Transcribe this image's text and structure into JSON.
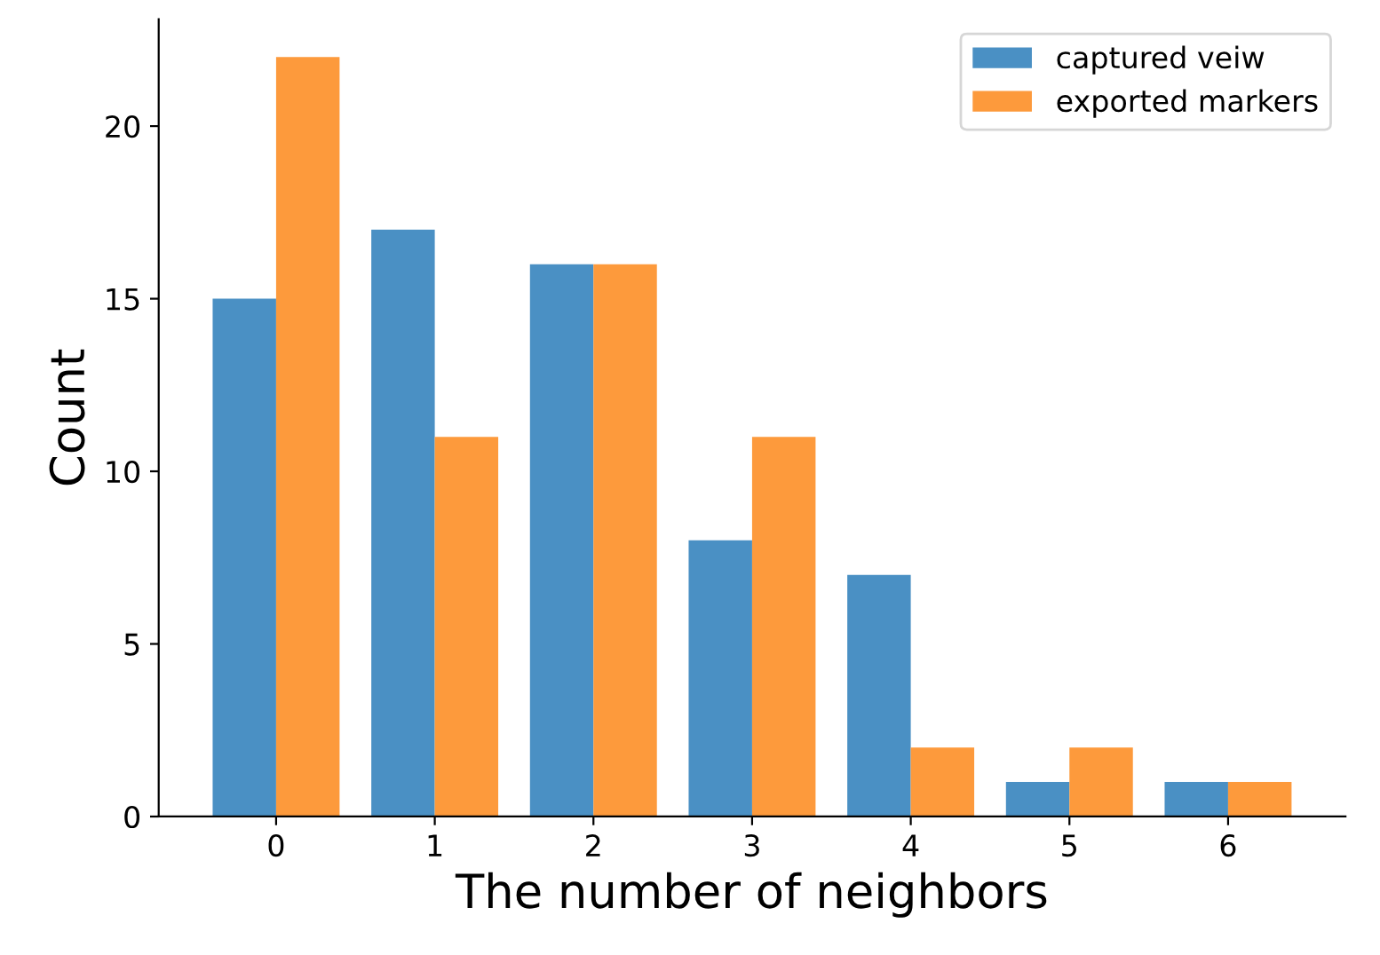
{
  "chart_data": {
    "type": "bar",
    "xlabel": "The number of neighbors",
    "ylabel": "Count",
    "categories": [
      "0",
      "1",
      "2",
      "3",
      "4",
      "5",
      "6"
    ],
    "series": [
      {
        "name": "captured veiw",
        "color": "#4a90c4",
        "values": [
          15,
          17,
          16,
          8,
          7,
          1,
          1
        ]
      },
      {
        "name": "exported markers",
        "color": "#fd9a3c",
        "values": [
          22,
          11,
          16,
          11,
          2,
          2,
          1
        ]
      }
    ],
    "ylim": [
      0,
      23.1
    ],
    "yticks": [
      0,
      5,
      10,
      15,
      20
    ],
    "grid": false,
    "legend": "top right"
  }
}
